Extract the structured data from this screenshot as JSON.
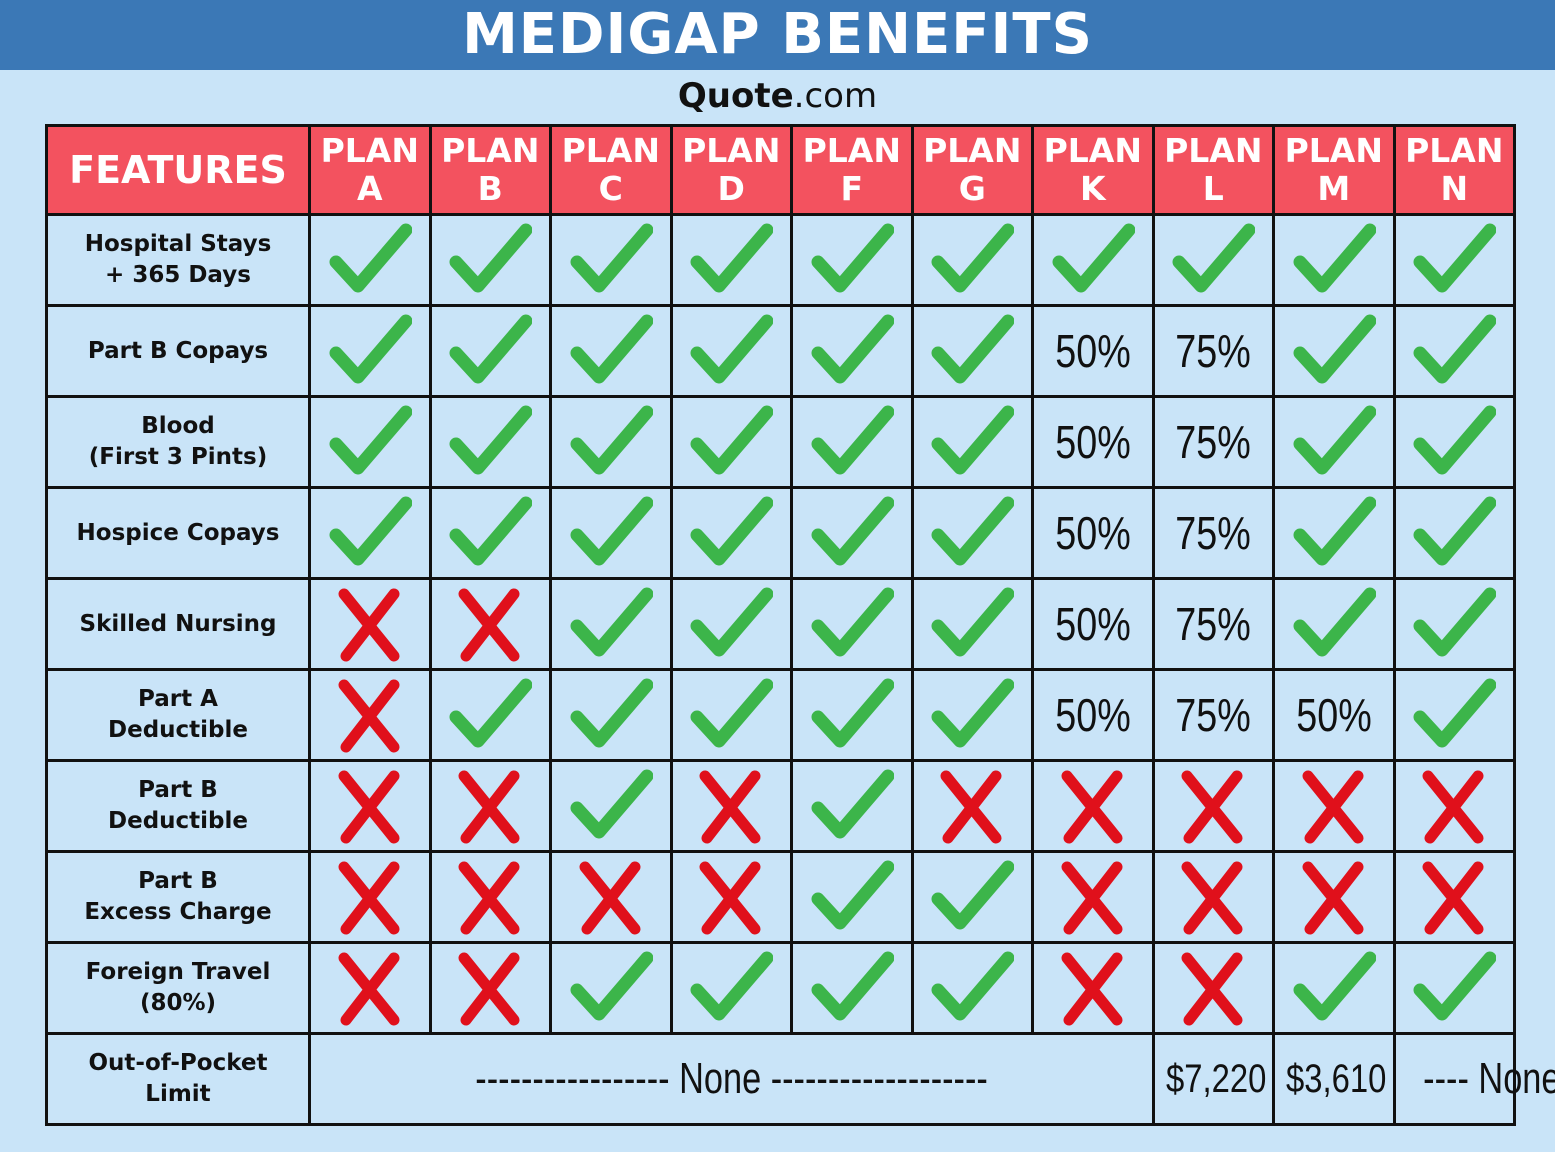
{
  "header": {
    "title": "MEDIGAP BENEFITS",
    "brand": "Quote",
    "brand_suffix": ".com"
  },
  "table": {
    "columns": [
      "FEATURES",
      "PLAN A",
      "PLAN B",
      "PLAN C",
      "PLAN D",
      "PLAN F",
      "PLAN G",
      "PLAN K",
      "PLAN L",
      "PLAN M",
      "PLAN N"
    ],
    "rows": [
      {
        "feature": "Hospital Stays\n+ 365 Days",
        "cells": [
          true,
          true,
          true,
          true,
          true,
          true,
          true,
          true,
          true,
          true
        ]
      },
      {
        "feature": "Part B Copays",
        "cells": [
          true,
          true,
          true,
          true,
          true,
          true,
          "50%",
          "75%",
          true,
          true
        ]
      },
      {
        "feature": "Blood\n(First 3 Pints)",
        "cells": [
          true,
          true,
          true,
          true,
          true,
          true,
          "50%",
          "75%",
          true,
          true
        ]
      },
      {
        "feature": "Hospice Copays",
        "cells": [
          true,
          true,
          true,
          true,
          true,
          true,
          "50%",
          "75%",
          true,
          true
        ]
      },
      {
        "feature": "Skilled Nursing",
        "cells": [
          false,
          false,
          true,
          true,
          true,
          true,
          "50%",
          "75%",
          true,
          true
        ]
      },
      {
        "feature": "Part A\nDeductible",
        "cells": [
          false,
          true,
          true,
          true,
          true,
          true,
          "50%",
          "75%",
          "50%",
          true
        ]
      },
      {
        "feature": "Part B\nDeductible",
        "cells": [
          false,
          false,
          true,
          false,
          true,
          false,
          false,
          false,
          false,
          false
        ]
      },
      {
        "feature": "Part B\nExcess Charge",
        "cells": [
          false,
          false,
          false,
          false,
          true,
          true,
          false,
          false,
          false,
          false
        ]
      },
      {
        "feature": "Foreign Travel\n(80%)",
        "cells": [
          false,
          false,
          true,
          true,
          true,
          true,
          false,
          false,
          true,
          true
        ]
      },
      {
        "feature": "Out-of-Pocket\nLimit",
        "cells": [
          "----------------- None -------------------",
          "$7,220",
          "$3,610",
          "---- None ----"
        ]
      }
    ]
  }
}
